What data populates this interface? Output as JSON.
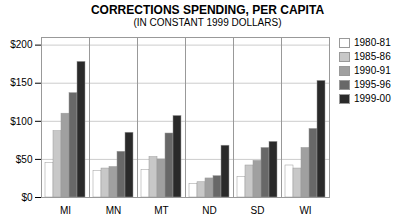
{
  "chart_data": {
    "type": "bar",
    "title": "CORRECTIONS SPENDING, PER CAPITA",
    "subtitle": "(IN CONSTANT 1999 DOLLARS)",
    "categories": [
      "MI",
      "MN",
      "MT",
      "ND",
      "SD",
      "WI"
    ],
    "series": [
      {
        "name": "1980-81",
        "color": "#ffffff",
        "values": [
          45,
          35,
          36,
          18,
          27,
          42
        ]
      },
      {
        "name": "1985-86",
        "color": "#c8c8c8",
        "values": [
          87,
          38,
          53,
          20,
          42,
          38
        ]
      },
      {
        "name": "1990-91",
        "color": "#a0a0a0",
        "values": [
          110,
          40,
          50,
          25,
          48,
          65
        ]
      },
      {
        "name": "1995-96",
        "color": "#686868",
        "values": [
          137,
          60,
          84,
          28,
          65,
          90
        ]
      },
      {
        "name": "1999-00",
        "color": "#2a2a2a",
        "values": [
          178,
          85,
          107,
          68,
          73,
          153
        ]
      }
    ],
    "ylim": [
      0,
      210
    ],
    "yticks": [
      {
        "value": 0,
        "label": "$0"
      },
      {
        "value": 50,
        "label": "$50"
      },
      {
        "value": 100,
        "label": "$100"
      },
      {
        "value": 150,
        "label": "$150"
      },
      {
        "value": 200,
        "label": "$200"
      }
    ],
    "grid": true,
    "legend": "upper right"
  }
}
